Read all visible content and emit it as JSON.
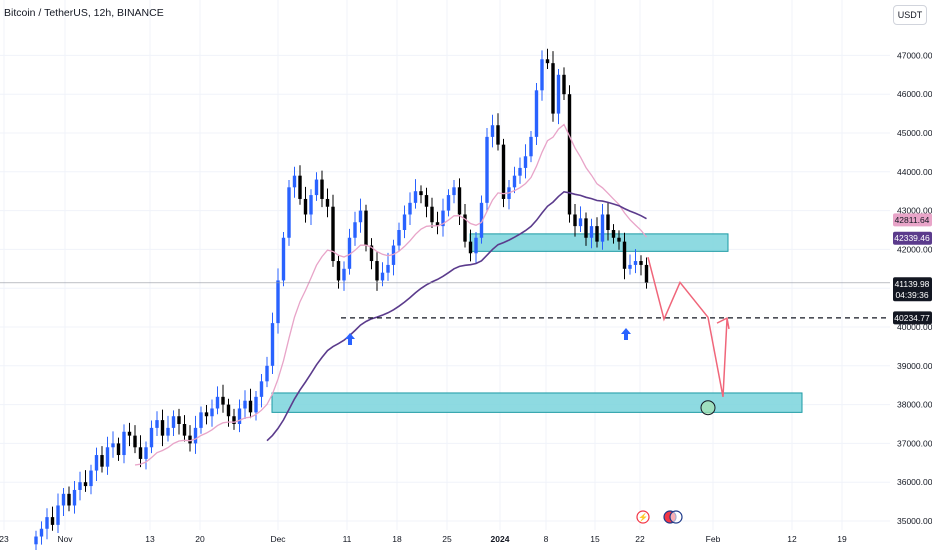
{
  "header": {
    "symbol_title": "Bitcoin / TetherUS, 12h, BINANCE",
    "unit_button": "USDT"
  },
  "price_labels": {
    "ma_fast": {
      "value": "42811.64",
      "color": "#e8a4c8"
    },
    "ma_slow": {
      "value": "42339.46",
      "color": "#5b3b8c"
    },
    "last_price": {
      "value": "41139.98",
      "countdown": "04:39:36",
      "color": "#131722"
    },
    "support_level": {
      "value": "40234.77",
      "color": "#131722"
    }
  },
  "colors": {
    "up": "#2962ff",
    "down": "#000000",
    "ma_fast": "#e8a4c8",
    "ma_slow": "#5b3b8c",
    "zone_fill": "#7ad3dc",
    "zone_border": "#1b9aa4",
    "arrow_blue": "#2962ff",
    "path_red": "#f0667a",
    "grid": "#f0f3fa"
  },
  "icons": [
    "lightning-event-icon",
    "us-flag-event-icon"
  ],
  "chart_data": {
    "type": "candlestick",
    "title": "Bitcoin / TetherUS, 12h, BINANCE",
    "ylabel": "USDT",
    "y_ticks": [
      35000,
      36000,
      37000,
      38000,
      39000,
      40000,
      41000,
      42000,
      43000,
      44000,
      45000,
      46000,
      47000
    ],
    "y_tick_labels": [
      "35000.00",
      "36000.00",
      "37000.00",
      "38000.00",
      "39000.00",
      "40000.00",
      "41000.00",
      "42000.00",
      "43000.00",
      "44000.00",
      "45000.00",
      "46000.00",
      "47000.00"
    ],
    "x_tick_labels": [
      "23",
      "Nov",
      "13",
      "20",
      "Dec",
      "11",
      "18",
      "25",
      "2024",
      "8",
      "15",
      "22",
      "Feb",
      "12",
      "19"
    ],
    "ylim": [
      34850,
      48400
    ],
    "candles_close": [
      34600,
      34800,
      35100,
      34900,
      35400,
      35700,
      35400,
      35800,
      36000,
      35900,
      36300,
      36700,
      36400,
      36900,
      37000,
      36700,
      37300,
      37200,
      36900,
      36600,
      36900,
      37400,
      37600,
      37200,
      37400,
      37700,
      37500,
      37200,
      37000,
      37400,
      37800,
      37700,
      37900,
      38200,
      38000,
      37700,
      37500,
      37900,
      38100,
      37800,
      38200,
      38600,
      39000,
      40100,
      41200,
      42300,
      43600,
      43900,
      43300,
      42900,
      43400,
      43800,
      43300,
      43100,
      41700,
      41200,
      41500,
      42300,
      42700,
      43000,
      42100,
      41700,
      41200,
      41400,
      41600,
      42100,
      42500,
      42900,
      43200,
      43500,
      43400,
      43100,
      42700,
      42600,
      43000,
      43400,
      43600,
      42900,
      42200,
      41900,
      42300,
      43200,
      44900,
      45200,
      44700,
      43300,
      43600,
      43900,
      44100,
      44400,
      44900,
      46100,
      46900,
      46800,
      45500,
      46500,
      46000,
      42900,
      42600,
      42800,
      42300,
      42600,
      42200,
      42900,
      42500,
      42300,
      42200,
      41500,
      41600,
      41700,
      41600,
      41140
    ],
    "ma_fast_level": 42811.64,
    "ma_slow_level": 42339.46,
    "last_price": 41139.98,
    "horizontal_level": 40234.77,
    "resistance_zone": [
      41950,
      42400
    ],
    "target_zone": [
      37800,
      38300
    ],
    "projected_path": [
      41800,
      40200,
      41150,
      40250,
      38200,
      40200
    ]
  }
}
